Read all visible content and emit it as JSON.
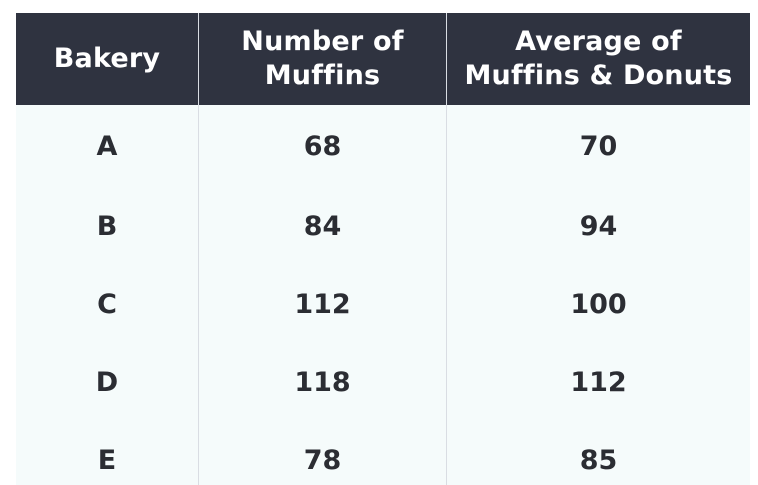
{
  "chart_data": {
    "type": "table",
    "columns": [
      "Bakery",
      "Number of\nMuffins",
      "Average of\nMuffins & Donuts"
    ],
    "rows": [
      [
        "A",
        "68",
        "70"
      ],
      [
        "B",
        "84",
        "94"
      ],
      [
        "C",
        "112",
        "100"
      ],
      [
        "D",
        "118",
        "112"
      ],
      [
        "E",
        "78",
        "85"
      ]
    ]
  },
  "colors": {
    "header_background": "#2f3340",
    "header_text": "#ffffff",
    "body_background": "#f5fbfb",
    "body_text": "#2b2d33"
  }
}
